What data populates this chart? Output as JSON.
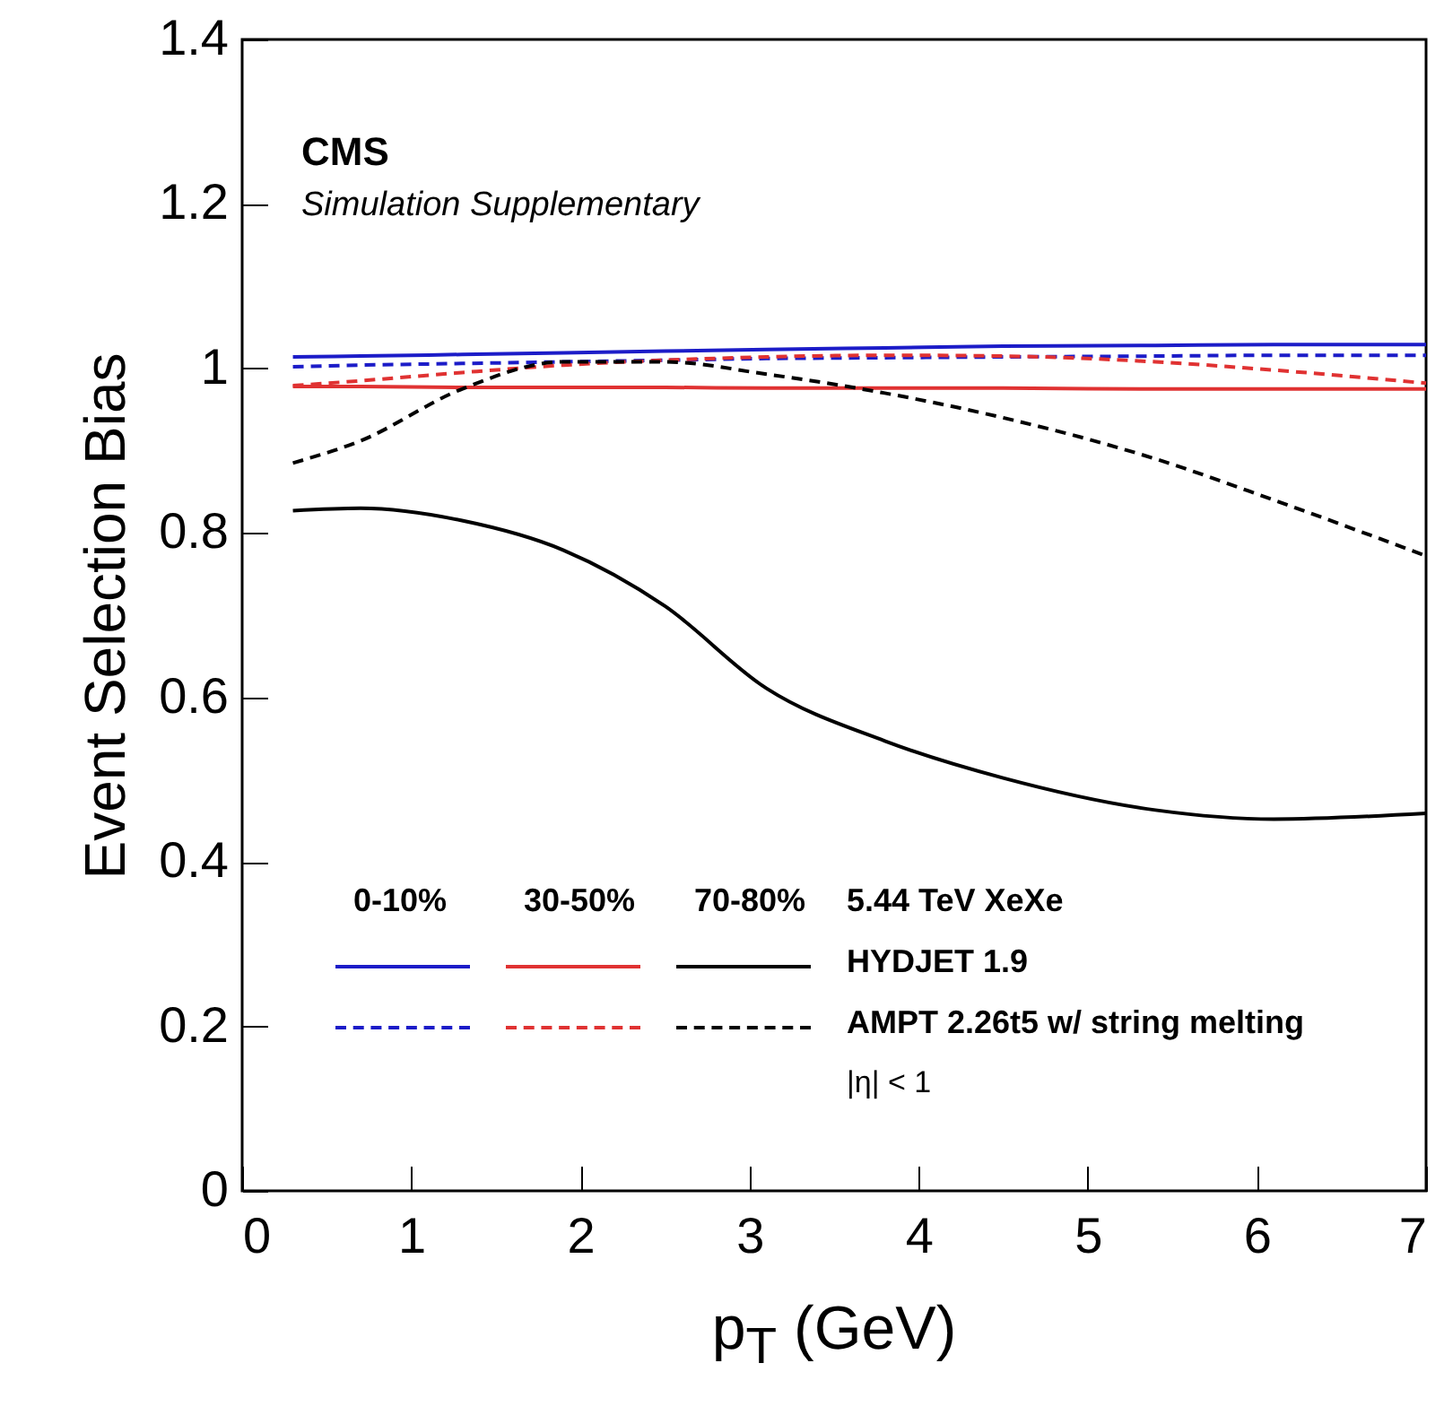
{
  "chart_data": {
    "type": "line",
    "xlabel": "p$_{T}$ (GeV)",
    "ylabel": "Event Selection Bias",
    "x": [
      0.3,
      0.7,
      1.3,
      1.9,
      2.5,
      3.1,
      3.8,
      4.5,
      5.4,
      6.1,
      7.0
    ],
    "series": [
      {
        "color": "#1c1cc8",
        "line_style": "solid",
        "values": [
          1.014,
          1.015,
          1.017,
          1.019,
          1.021,
          1.023,
          1.025,
          1.027,
          1.028,
          1.029,
          1.029
        ]
      },
      {
        "color": "#e03232",
        "line_style": "solid",
        "values": [
          0.978,
          0.978,
          0.977,
          0.977,
          0.977,
          0.976,
          0.976,
          0.976,
          0.975,
          0.975,
          0.975
        ]
      },
      {
        "color": "#000000",
        "line_style": "solid",
        "values": [
          0.827,
          0.83,
          0.815,
          0.779,
          0.711,
          0.611,
          0.547,
          0.502,
          0.463,
          0.452,
          0.459
        ]
      },
      {
        "color": "#1c1cc8",
        "line_style": "dashed",
        "values": [
          1.002,
          1.004,
          1.006,
          1.008,
          1.01,
          1.012,
          1.013,
          1.014,
          1.015,
          1.016,
          1.016
        ]
      },
      {
        "color": "#e03232",
        "line_style": "dashed",
        "values": [
          0.979,
          0.985,
          0.995,
          1.004,
          1.01,
          1.014,
          1.016,
          1.015,
          1.008,
          0.998,
          0.982
        ]
      },
      {
        "color": "#000000",
        "line_style": "dashed",
        "values": [
          0.885,
          0.912,
          0.975,
          1.008,
          1.008,
          0.993,
          0.97,
          0.94,
          0.89,
          0.84,
          0.772
        ]
      }
    ],
    "xlim": [
      0,
      7
    ],
    "xticks": [
      0,
      1,
      2,
      3,
      4,
      5,
      6,
      7
    ],
    "ylim": [
      0,
      1.4
    ],
    "yticks": [
      0,
      0.2,
      0.4,
      0.6,
      0.8,
      1,
      1.2,
      1.4
    ],
    "grid": false,
    "annotations": [
      "CMS",
      "Simulation Supplementary",
      "0-10%",
      "30-50%",
      "70-80%",
      "5.44 TeV XeXe",
      "HYDJET 1.9",
      "AMPT 2.26t5 w/ string melting",
      "|η| < 1"
    ]
  }
}
